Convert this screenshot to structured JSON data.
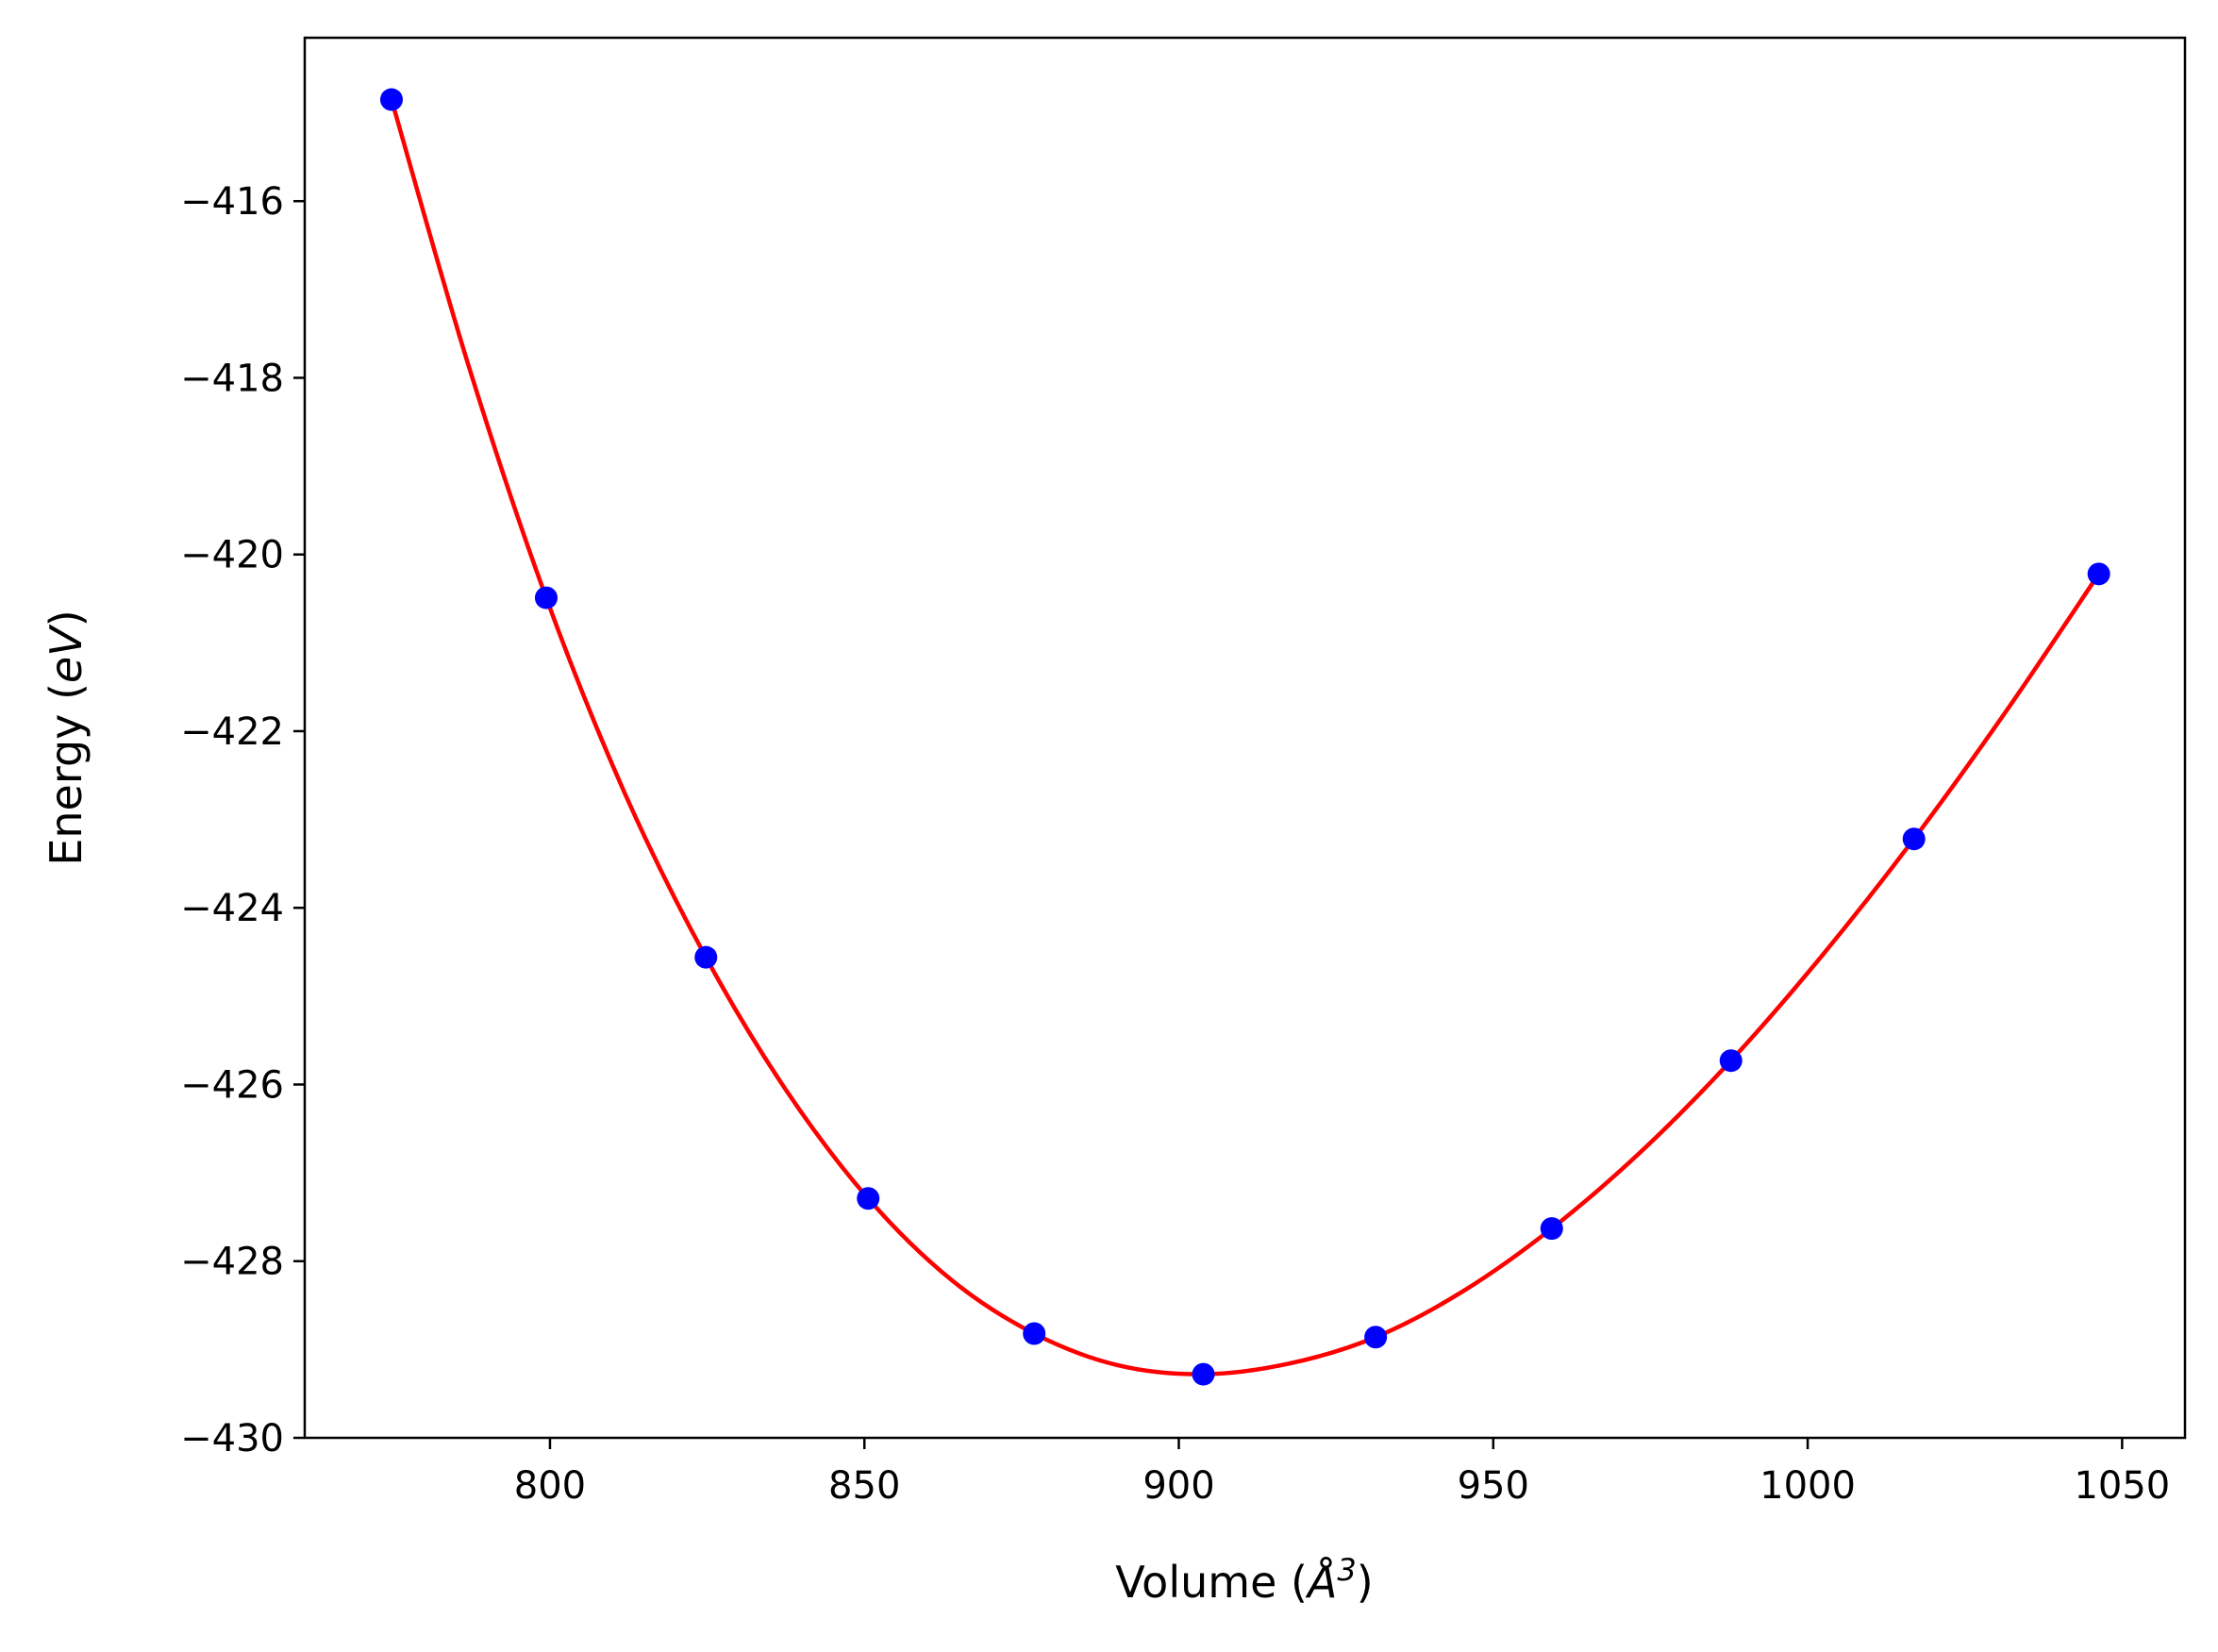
{
  "chart_data": {
    "type": "line",
    "title": "",
    "xlabel": "Volume (Å³)",
    "xlabel_parts": {
      "prefix": "Volume (",
      "symbol": "Å",
      "exponent": "3",
      "suffix": ")"
    },
    "ylabel": "Energy (eV)",
    "ylabel_parts": {
      "prefix": "Energy (",
      "unit": "eV",
      "suffix": ")"
    },
    "xlim": [
      761,
      1060
    ],
    "ylim": [
      -430,
      -414.15
    ],
    "xticks": [
      800,
      850,
      900,
      950,
      1000,
      1050
    ],
    "xtick_labels": [
      "800",
      "850",
      "900",
      "950",
      "1000",
      "1050"
    ],
    "yticks": [
      -416,
      -418,
      -420,
      -422,
      -424,
      -426,
      -428,
      -430
    ],
    "ytick_labels": [
      "−416",
      "−418",
      "−420",
      "−422",
      "−424",
      "−426",
      "−428",
      "−430"
    ],
    "grid": false,
    "legend": "none",
    "series": [
      {
        "kind": "scatter",
        "color": "#0000ff",
        "x": [
          774.8,
          799.4,
          824.8,
          850.6,
          877.0,
          903.9,
          931.3,
          959.3,
          987.8,
          1016.9,
          1046.3
        ],
        "y": [
          -414.85,
          -420.49,
          -424.56,
          -427.29,
          -428.82,
          -429.28,
          -428.86,
          -427.63,
          -425.73,
          -423.22,
          -420.22
        ]
      },
      {
        "kind": "line",
        "color": "#ff0000",
        "x": [
          774.8,
          787.0,
          799.4,
          812.0,
          824.8,
          837.6,
          850.6,
          863.8,
          877.0,
          890.4,
          903.9,
          917.5,
          931.3,
          945.2,
          959.3,
          973.5,
          987.8,
          1002.3,
          1016.9,
          1031.5,
          1046.3
        ],
        "y": [
          -414.85,
          -417.85,
          -420.49,
          -422.72,
          -424.56,
          -426.07,
          -427.29,
          -428.21,
          -428.82,
          -429.18,
          -429.28,
          -429.16,
          -428.86,
          -428.34,
          -427.63,
          -426.76,
          -425.73,
          -424.54,
          -423.22,
          -421.78,
          -420.22
        ]
      }
    ]
  }
}
